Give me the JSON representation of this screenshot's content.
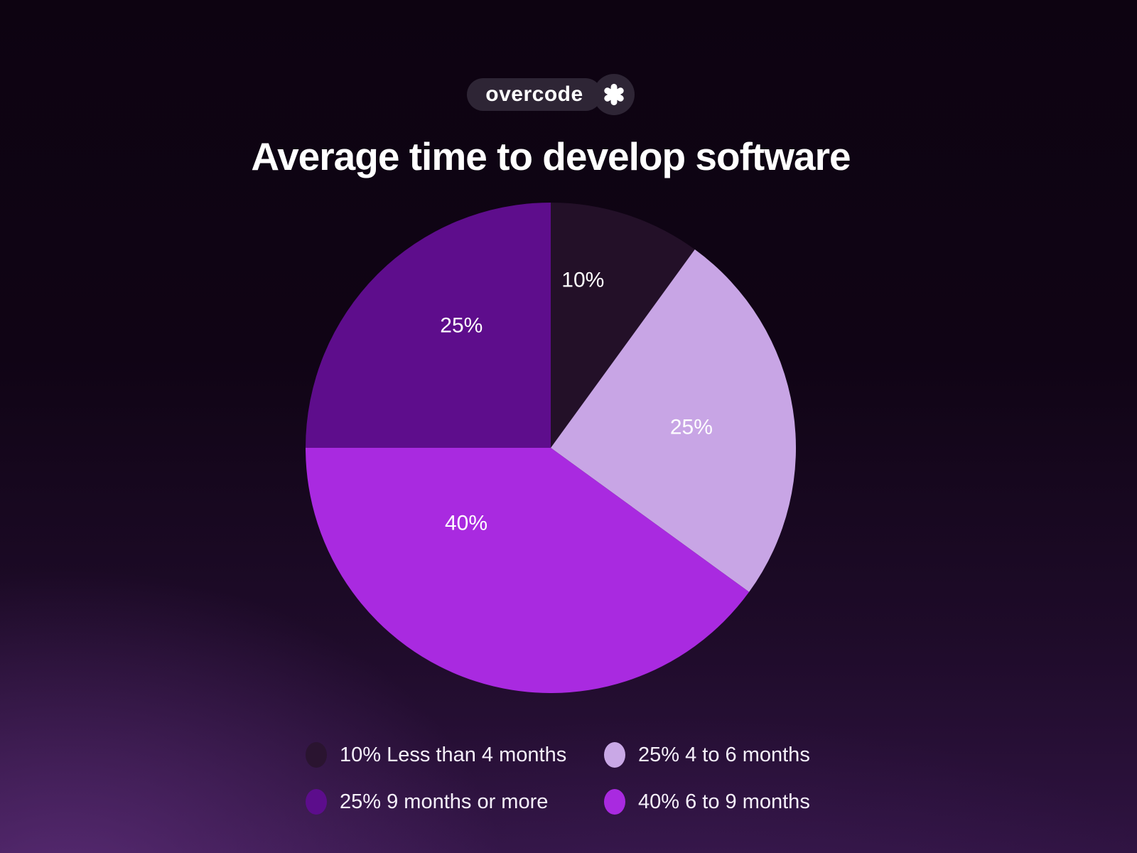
{
  "logo": {
    "text": "overcode",
    "icon": "asterisk"
  },
  "chart_data": {
    "type": "pie",
    "title": "Average time to develop software",
    "unit": "%",
    "slices": [
      {
        "label": "Less than 4 months",
        "value": 10,
        "color": "#231028"
      },
      {
        "label": "4 to 6 months",
        "value": 25,
        "color": "#c8a5e5"
      },
      {
        "label": "6 to 9 months",
        "value": 40,
        "color": "#a92ae0"
      },
      {
        "label": "9 months or more",
        "value": 25,
        "color": "#5e0d8c"
      }
    ],
    "start_angle_deg": 0,
    "direction": "clockwise",
    "data_labels": [
      "10%",
      "25%",
      "40%",
      "25%"
    ],
    "layout": {
      "legend_position": "bottom",
      "label_color": "#ffffff",
      "label_angle_deg": [
        10.8,
        81.4,
        228.6,
        324
      ],
      "label_radius_fraction": [
        0.7,
        0.58,
        0.46,
        0.62
      ]
    }
  },
  "legend": {
    "items": [
      {
        "label": "10% Less than 4 months",
        "color": "#2a1430"
      },
      {
        "label": "25% 4 to 6 months",
        "color": "#c9a8e6"
      },
      {
        "label": "25% 9 months or more",
        "color": "#5c0d8c"
      },
      {
        "label": "40% 6 to 9 months",
        "color": "#a92ae0"
      }
    ]
  },
  "theme": {
    "background_top": "#0e0312",
    "background_bottom_left": "#391847",
    "background_bottom_right": "#321443",
    "text_color": "#ffffff",
    "logo_pill_color": "#2e2535"
  }
}
